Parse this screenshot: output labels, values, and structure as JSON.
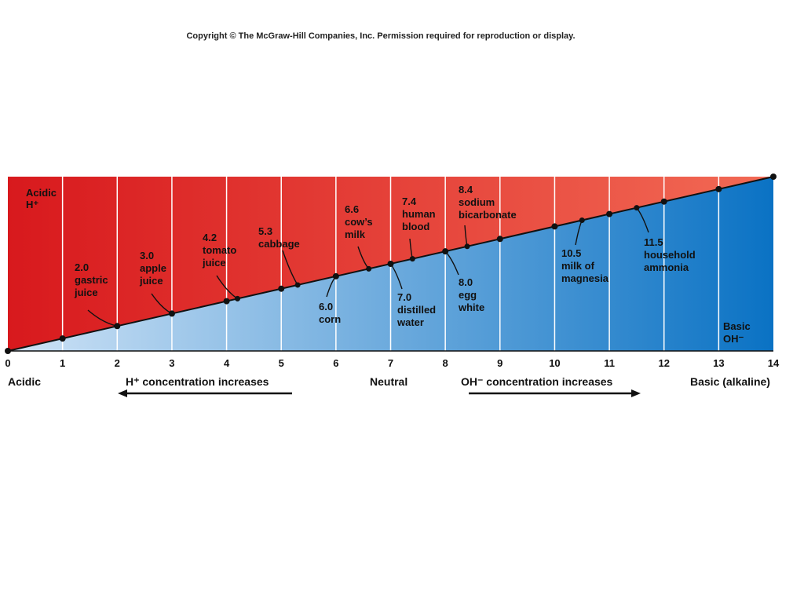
{
  "copyright": "Copyright © The McGraw-Hill Companies, Inc. Permission required for reproduction or display.",
  "corner_labels": {
    "acid_top": [
      "Acidic",
      "H⁺"
    ],
    "base_bottom": [
      "Basic",
      "OH⁻"
    ]
  },
  "scale": {
    "min": 0,
    "max": 14,
    "ticks": [
      "0",
      "1",
      "2",
      "3",
      "4",
      "5",
      "6",
      "7",
      "8",
      "9",
      "10",
      "11",
      "12",
      "13",
      "14"
    ]
  },
  "substances": [
    {
      "ph": 2.0,
      "lines": [
        "2.0",
        "gastric",
        "juice"
      ],
      "side": "acid"
    },
    {
      "ph": 3.0,
      "lines": [
        "3.0",
        "apple",
        "juice"
      ],
      "side": "acid"
    },
    {
      "ph": 4.2,
      "lines": [
        "4.2",
        "tomato",
        "juice"
      ],
      "side": "acid"
    },
    {
      "ph": 5.3,
      "lines": [
        "5.3",
        "cabbage"
      ],
      "side": "acid"
    },
    {
      "ph": 6.0,
      "lines": [
        "6.0",
        "corn"
      ],
      "side": "base"
    },
    {
      "ph": 6.6,
      "lines": [
        "6.6",
        "cow’s",
        "milk"
      ],
      "side": "acid"
    },
    {
      "ph": 7.0,
      "lines": [
        "7.0",
        "distilled",
        "water"
      ],
      "side": "base"
    },
    {
      "ph": 7.4,
      "lines": [
        "7.4",
        "human",
        "blood"
      ],
      "side": "acid"
    },
    {
      "ph": 8.0,
      "lines": [
        "8.0",
        "egg",
        "white"
      ],
      "side": "base"
    },
    {
      "ph": 8.4,
      "lines": [
        "8.4",
        "sodium",
        "bicarbonate"
      ],
      "side": "acid"
    },
    {
      "ph": 10.5,
      "lines": [
        "10.5",
        "milk of",
        "magnesia"
      ],
      "side": "base"
    },
    {
      "ph": 11.5,
      "lines": [
        "11.5",
        "household",
        "ammonia"
      ],
      "side": "base"
    }
  ],
  "bottom": {
    "acidic": "Acidic",
    "h_increase": "H⁺ concentration increases",
    "neutral": "Neutral",
    "oh_increase": "OH⁻ concentration increases",
    "basic": "Basic (alkaline)"
  },
  "colors": {
    "acid_dark": "#d8191d",
    "acid_light": "#f26a55",
    "base_light": "#cfe3f6",
    "base_dark": "#0a72c4",
    "line": "#111111"
  }
}
